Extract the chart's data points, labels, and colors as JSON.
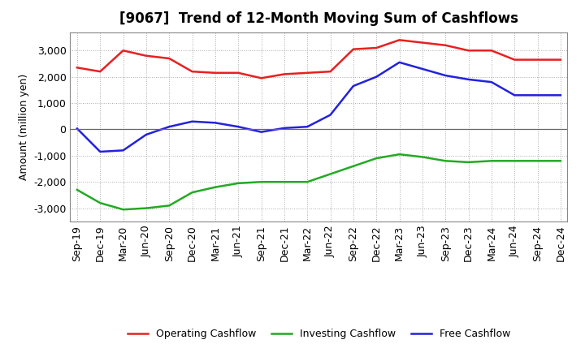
{
  "title": "[9067]  Trend of 12-Month Moving Sum of Cashflows",
  "ylabel": "Amount (million yen)",
  "x_labels": [
    "Sep-19",
    "Dec-19",
    "Mar-20",
    "Jun-20",
    "Sep-20",
    "Dec-20",
    "Mar-21",
    "Jun-21",
    "Sep-21",
    "Dec-21",
    "Mar-22",
    "Jun-22",
    "Sep-22",
    "Dec-22",
    "Mar-23",
    "Jun-23",
    "Sep-23",
    "Dec-23",
    "Mar-24",
    "Jun-24",
    "Sep-24",
    "Dec-24"
  ],
  "operating": [
    2350,
    2200,
    3000,
    2800,
    2700,
    2200,
    2150,
    2150,
    1950,
    2100,
    2150,
    2200,
    3050,
    3100,
    3400,
    3300,
    3200,
    3000,
    3000,
    2650,
    2650,
    2650
  ],
  "investing": [
    -2300,
    -2800,
    -3050,
    -3000,
    -2900,
    -2400,
    -2200,
    -2050,
    -2000,
    -2000,
    -2000,
    -1700,
    -1400,
    -1100,
    -950,
    -1050,
    -1200,
    -1250,
    -1200,
    -1200,
    -1200,
    -1200
  ],
  "free": [
    30,
    -850,
    -800,
    -200,
    100,
    300,
    250,
    100,
    -100,
    50,
    100,
    550,
    1650,
    2000,
    2550,
    2300,
    2050,
    1900,
    1800,
    1300,
    1300,
    1300
  ],
  "operating_color": "#e82020",
  "investing_color": "#22aa22",
  "free_color": "#2222dd",
  "ylim": [
    -3500,
    3700
  ],
  "yticks": [
    -3000,
    -2000,
    -1000,
    0,
    1000,
    2000,
    3000
  ],
  "background_color": "#ffffff",
  "grid_color": "#aaaaaa",
  "title_fontsize": 12,
  "axis_fontsize": 9,
  "tick_fontsize": 9,
  "legend_fontsize": 9
}
